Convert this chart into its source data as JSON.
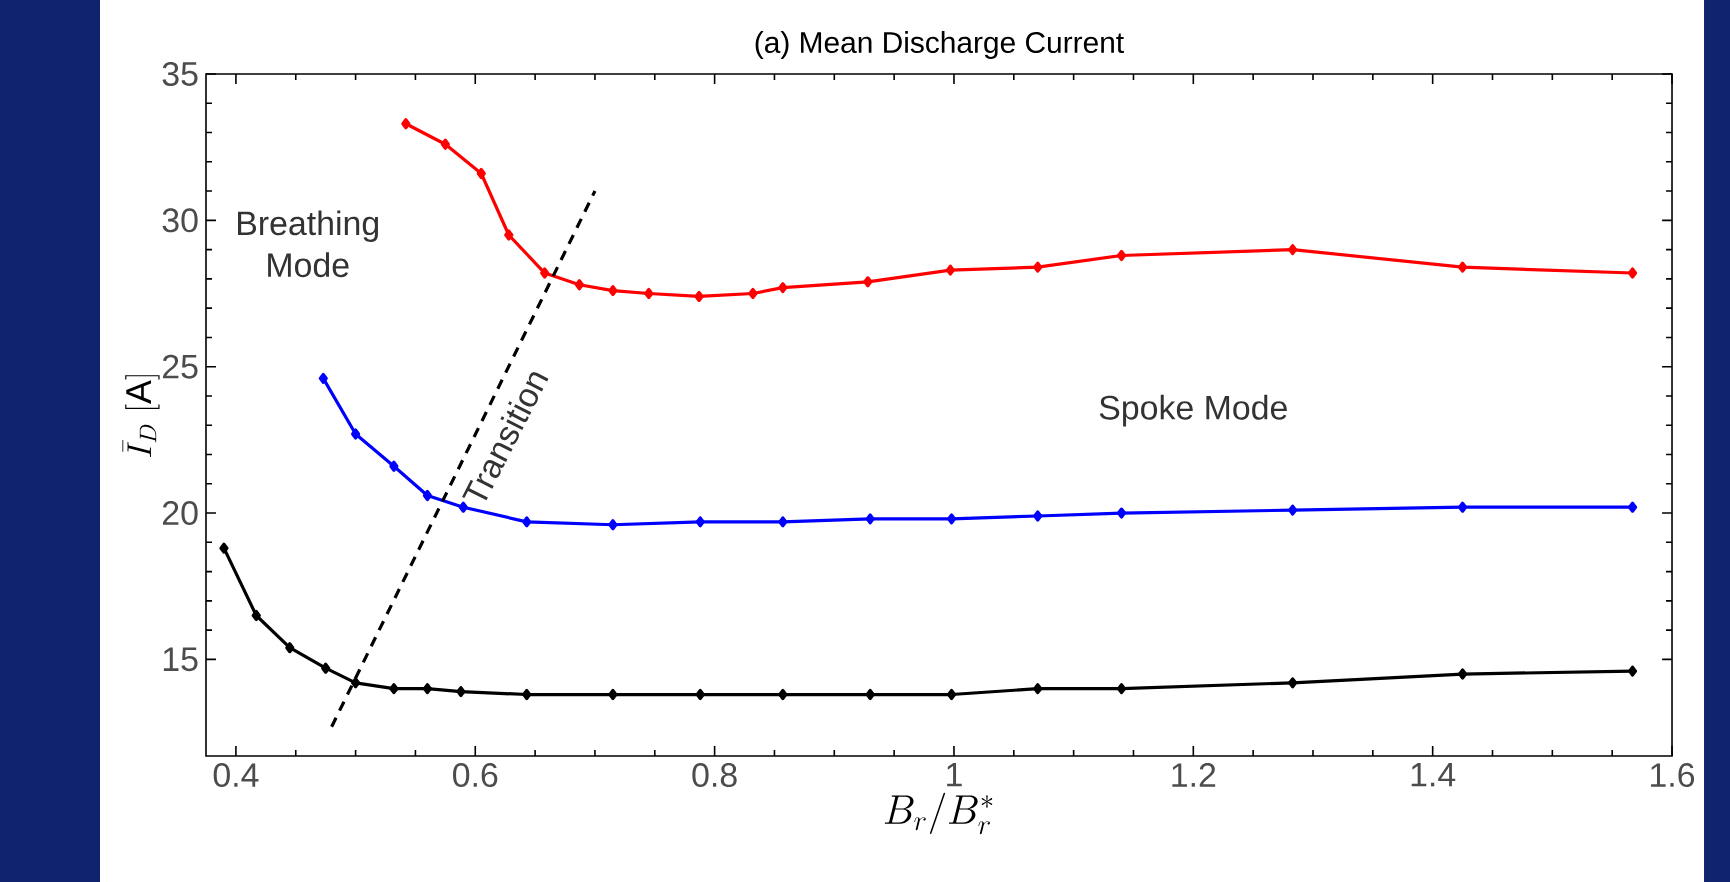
{
  "chart_data": {
    "type": "line",
    "title": "(a) Mean Discharge Current",
    "xlabel": "B_r/B_r^*",
    "ylabel": "\\bar{I}_D\\ [\\mathrm{A}]",
    "xlim": [
      0.375,
      1.6
    ],
    "ylim": [
      11.7,
      35
    ],
    "xticks": [
      0.4,
      0.6,
      0.8,
      1,
      1.2,
      1.4,
      1.6
    ],
    "yticks": [
      15,
      20,
      25,
      30,
      35
    ],
    "marker": "diamond",
    "line_style": "solid",
    "grid": false,
    "annotations": [
      "Breathing Mode",
      "Spoke Mode",
      "Transition"
    ],
    "series": [
      {
        "color": "#ff0000",
        "x": [
          0.542,
          0.575,
          0.605,
          0.628,
          0.658,
          0.687,
          0.715,
          0.745,
          0.787,
          0.832,
          0.857,
          0.928,
          0.997,
          1.07,
          1.14,
          1.283,
          1.425,
          1.567
        ],
        "values": [
          33.3,
          32.6,
          31.6,
          29.5,
          28.2,
          27.8,
          27.6,
          27.5,
          27.4,
          27.5,
          27.7,
          27.9,
          28.3,
          28.4,
          28.8,
          29.0,
          28.4,
          28.2
        ]
      },
      {
        "color": "#0000ff",
        "x": [
          0.473,
          0.5,
          0.532,
          0.56,
          0.59,
          0.643,
          0.715,
          0.788,
          0.857,
          0.93,
          0.998,
          1.07,
          1.14,
          1.283,
          1.425,
          1.567
        ],
        "values": [
          24.6,
          22.7,
          21.6,
          20.6,
          20.2,
          19.7,
          19.6,
          19.7,
          19.7,
          19.8,
          19.8,
          19.9,
          20.0,
          20.1,
          20.2,
          20.2
        ]
      },
      {
        "color": "#000000",
        "x": [
          0.39,
          0.417,
          0.445,
          0.475,
          0.5,
          0.532,
          0.56,
          0.588,
          0.643,
          0.715,
          0.788,
          0.857,
          0.93,
          0.998,
          1.07,
          1.14,
          1.283,
          1.425,
          1.567
        ],
        "values": [
          18.8,
          16.5,
          15.4,
          14.7,
          14.2,
          14.0,
          14.0,
          13.9,
          13.8,
          13.8,
          13.8,
          13.8,
          13.8,
          13.8,
          14.0,
          14.0,
          14.2,
          14.5,
          14.6
        ]
      },
      {
        "color": "#000000",
        "x": [
          0.48,
          0.7
        ],
        "values": [
          12.7,
          31.0
        ],
        "marker": "none",
        "line_style": "dashed"
      }
    ]
  }
}
